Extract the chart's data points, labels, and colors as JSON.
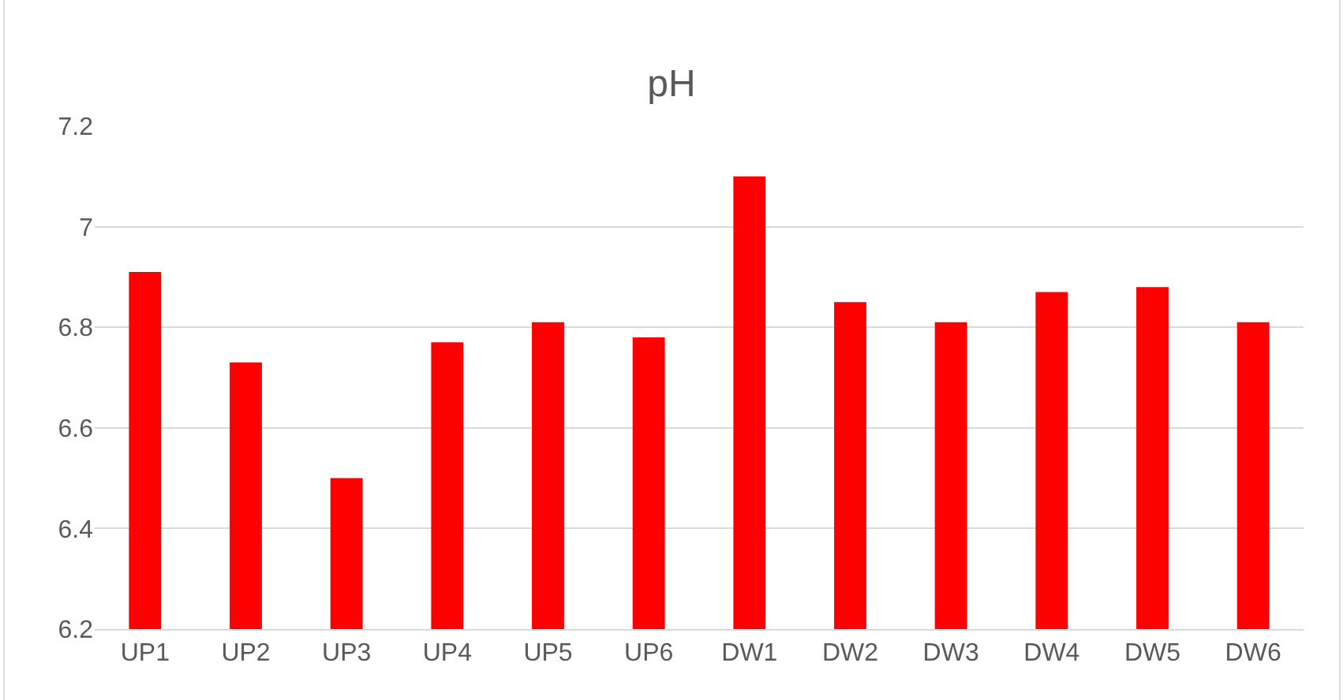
{
  "chart_data": {
    "type": "bar",
    "title": "pH",
    "categories": [
      "UP1",
      "UP2",
      "UP3",
      "UP4",
      "UP5",
      "UP6",
      "DW1",
      "DW2",
      "DW3",
      "DW4",
      "DW5",
      "DW6"
    ],
    "values": [
      6.91,
      6.73,
      6.5,
      6.77,
      6.81,
      6.78,
      7.1,
      6.85,
      6.81,
      6.87,
      6.88,
      6.81
    ],
    "color": "#ff0000",
    "ylim": [
      6.2,
      7.2
    ],
    "yticks": [
      6.2,
      6.4,
      6.6,
      6.8,
      {
        "value": 7,
        "label": "7"
      },
      7.2
    ],
    "grid": "y"
  }
}
